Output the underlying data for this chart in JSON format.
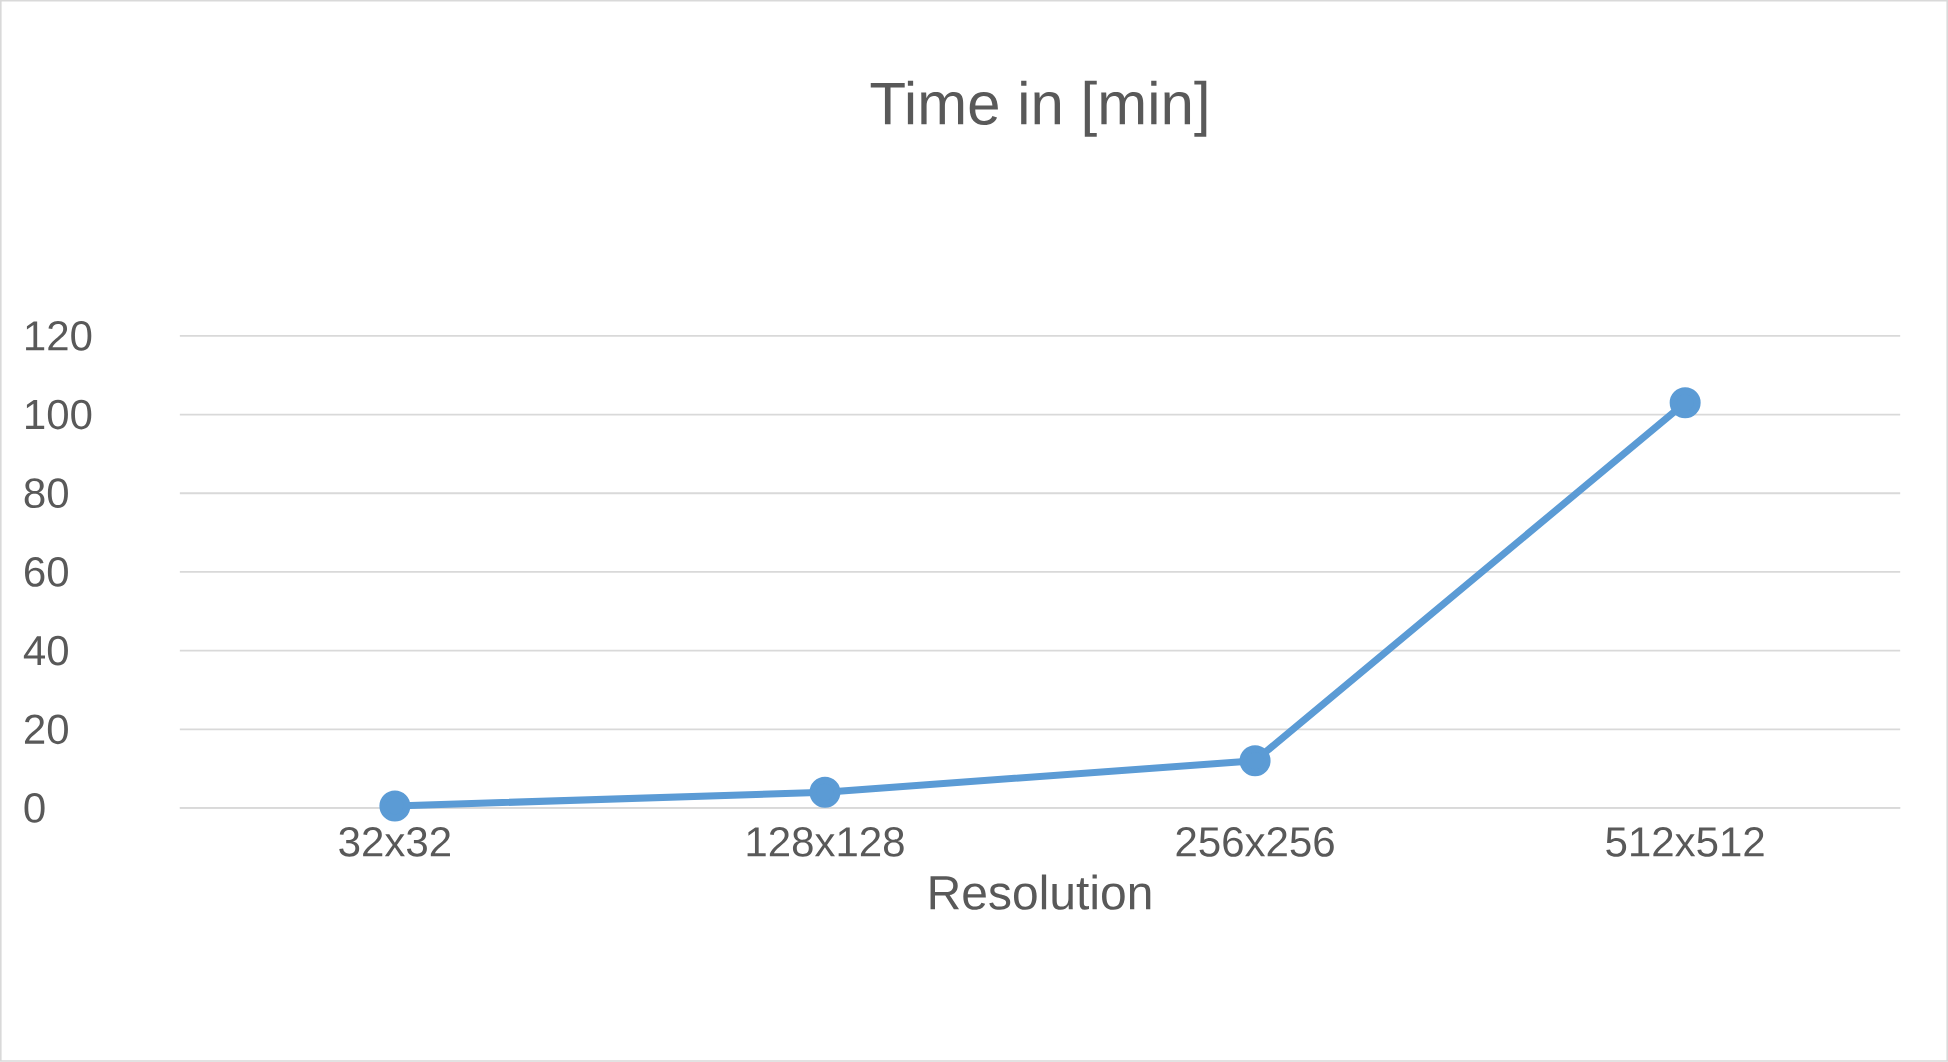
{
  "chart_data": {
    "type": "line",
    "title": "Time in [min]",
    "xlabel": "Resolution",
    "categories": [
      "32x32",
      "128x128",
      "256x256",
      "512x512"
    ],
    "series": [
      {
        "color": "#5b9bd5",
        "values": [
          0.5,
          4,
          12,
          103
        ]
      }
    ],
    "ylim": [
      0,
      120
    ],
    "yticks": [
      0,
      20,
      40,
      60,
      80,
      100,
      120
    ],
    "grid": "y",
    "marker": "circle",
    "line_style": "solid"
  }
}
